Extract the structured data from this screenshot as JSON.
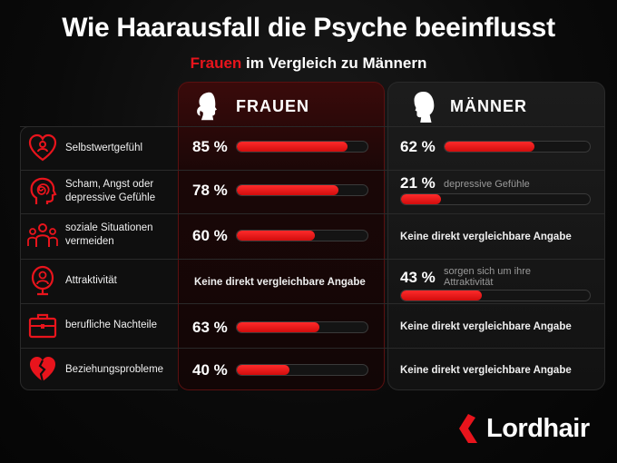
{
  "title": "Wie Haarausfall die Psyche beeinflusst",
  "subtitle": {
    "highlight": "Frauen",
    "rest": " im Vergleich zu Männern"
  },
  "columns": {
    "women": "FRAUEN",
    "men": "MÄNNER"
  },
  "colors": {
    "accent": "#e8141c",
    "background": "#0a0a0a"
  },
  "rows": [
    {
      "label": "Selbstwertgefühl",
      "icon": "heart-with-person-icon"
    },
    {
      "label": "Scham, Angst oder depressive Gefühle",
      "icon": "head-spiral-icon"
    },
    {
      "label": "soziale Situationen vermeiden",
      "icon": "group-people-icon"
    },
    {
      "label": "Attraktivität",
      "icon": "person-mirror-icon"
    },
    {
      "label": "berufliche Nachteile",
      "icon": "briefcase-icon"
    },
    {
      "label": "Beziehungsprobleme",
      "icon": "broken-heart-icon"
    }
  ],
  "cells": {
    "women": [
      {
        "pct_text": "85 %"
      },
      {
        "pct_text": "78 %"
      },
      {
        "pct_text": "60 %"
      },
      {
        "na_text": "Keine direkt vergleichbare Angabe"
      },
      {
        "pct_text": "63 %"
      },
      {
        "pct_text": "40 %"
      }
    ],
    "men": [
      {
        "pct_text": "62 %"
      },
      {
        "pct_text": "21 %",
        "note": "depressive Gefühle"
      },
      {
        "na_text": "Keine direkt vergleichbare Angabe"
      },
      {
        "pct_text": "43 %",
        "note": "sorgen sich um ihre Attraktivität"
      },
      {
        "na_text": "Keine direkt vergleichbare Angabe"
      },
      {
        "na_text": "Keine direkt vergleichbare Angabe"
      }
    ]
  },
  "chart_data": {
    "type": "bar",
    "categories": [
      "Selbstwertgefühl",
      "Scham, Angst oder depressive Gefühle",
      "soziale Situationen vermeiden",
      "Attraktivität",
      "berufliche Nachteile",
      "Beziehungsprobleme"
    ],
    "series": [
      {
        "name": "FRAUEN",
        "values": [
          85,
          78,
          60,
          null,
          63,
          40
        ]
      },
      {
        "name": "MÄNNER",
        "values": [
          62,
          21,
          null,
          43,
          null,
          null
        ]
      }
    ],
    "ylim": [
      0,
      100
    ]
  },
  "logo": {
    "text": "Lordhair"
  }
}
